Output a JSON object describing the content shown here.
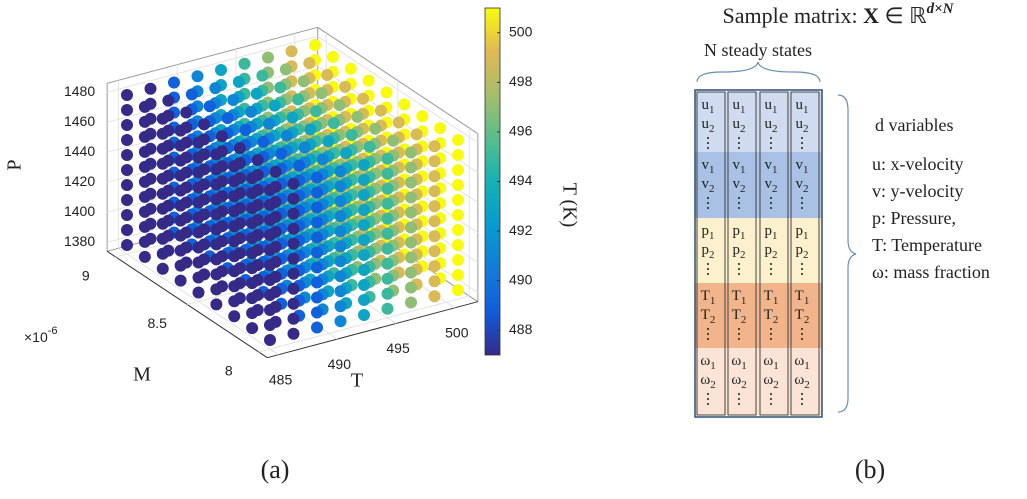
{
  "chart_data": {
    "type": "scatter3d",
    "x_label": "T",
    "y_label": "M",
    "z_label": "P",
    "x_values": [
      485,
      487,
      489,
      491,
      493,
      495,
      497,
      499,
      501
    ],
    "y_values": [
      8e-06,
      8.125e-06,
      8.25e-06,
      8.375e-06,
      8.5e-06,
      8.625e-06,
      8.75e-06,
      8.875e-06,
      9e-06
    ],
    "z_values": [
      1380,
      1390,
      1400,
      1410,
      1420,
      1430,
      1440,
      1450,
      1460,
      1470,
      1480
    ],
    "xlim": [
      485,
      501
    ],
    "ylim": [
      8e-06,
      9e-06
    ],
    "zlim": [
      1380,
      1480
    ],
    "xticks": [
      485,
      490,
      495,
      500
    ],
    "yticks": [
      {
        "value": 8e-06,
        "label": "8"
      },
      {
        "value": 8.5e-06,
        "label": "8.5"
      },
      {
        "value": 9e-06,
        "label": "9"
      }
    ],
    "y_multiplier": {
      "base": "×10",
      "exponent": "-6"
    },
    "zticks": [
      1380,
      1400,
      1420,
      1440,
      1460,
      1480
    ],
    "colorbar": {
      "label": "T (K)",
      "clim": [
        487,
        501
      ],
      "ticks": [
        488,
        490,
        492,
        494,
        496,
        498,
        500
      ],
      "colormap": "parula"
    },
    "caption": "(a)"
  },
  "diagram": {
    "title": {
      "text": "Sample matrix: ",
      "symbol": "X",
      "relation": " ∈ ℝ",
      "superscript": "d×N"
    },
    "columns_label": "N steady states",
    "columns": 4,
    "blocks": [
      {
        "symbol": "u",
        "subscripts": [
          "1",
          "2"
        ],
        "more": "⋮",
        "color": "#cfdcf0"
      },
      {
        "symbol": "v",
        "subscripts": [
          "1",
          "2"
        ],
        "more": "⋮",
        "color": "#a9c1e4"
      },
      {
        "symbol": "p",
        "subscripts": [
          "1",
          "2"
        ],
        "more": "⋮",
        "color": "#fdf1cd"
      },
      {
        "symbol": "T",
        "subscripts": [
          "1",
          "2"
        ],
        "more": "⋮",
        "color": "#f2b58b"
      },
      {
        "symbol": "ω",
        "subscripts": [
          "1",
          "2"
        ],
        "more": "⋮",
        "color": "#fbe4d6"
      }
    ],
    "rows_label": "d variables",
    "legend": [
      "u: x-velocity",
      "v: y-velocity",
      "p: Pressure,",
      "T: Temperature",
      "ω: mass fraction"
    ],
    "caption": "(b)"
  }
}
